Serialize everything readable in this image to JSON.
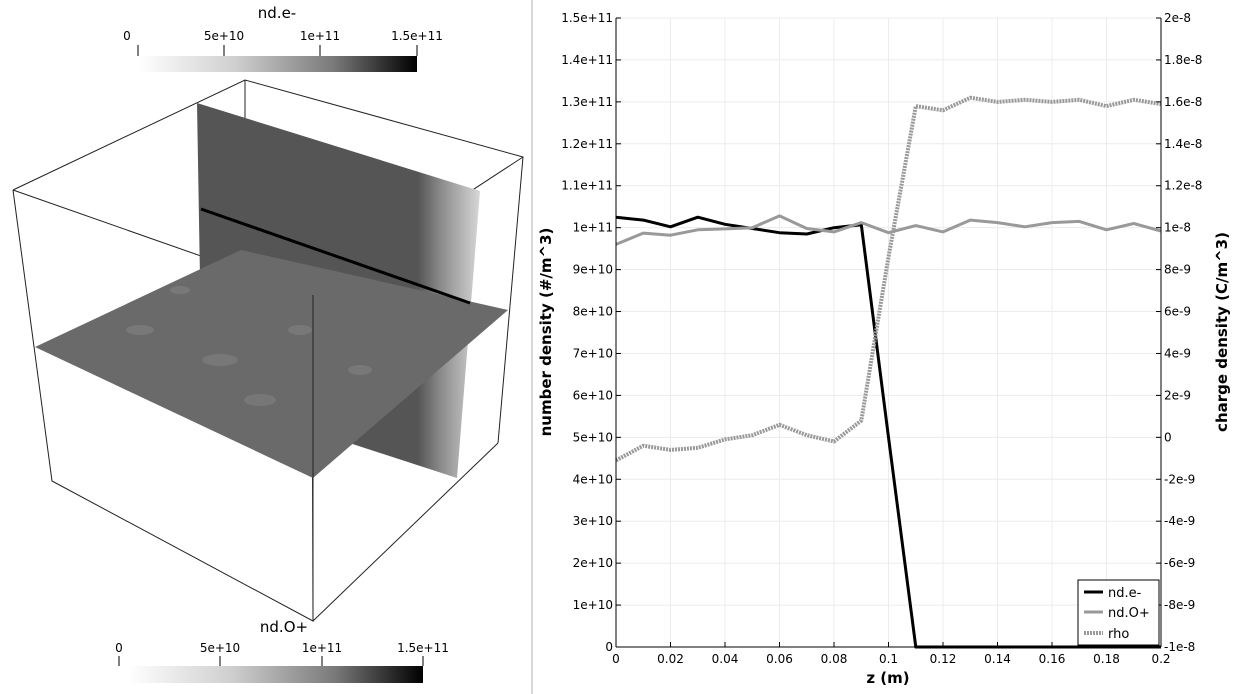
{
  "left_view": {
    "top_colorbar": {
      "title": "nd.e-",
      "tick_labels": [
        "0",
        "5e+10",
        "1e+11",
        "1.5e+11"
      ]
    },
    "bottom_colorbar": {
      "title": "nd.O+",
      "tick_labels": [
        "0",
        "5e+10",
        "1e+11",
        "1.5e+11"
      ]
    }
  },
  "chart_data": {
    "type": "line",
    "xlabel": "z (m)",
    "ylabel": "number density (#/m^3)",
    "y2label": "charge density (C/m^3)",
    "xlim": [
      0,
      0.2
    ],
    "ylim": [
      0,
      150000000000
    ],
    "y2lim": [
      -1e-08,
      2e-08
    ],
    "x_tick_labels": [
      "0",
      "0.02",
      "0.04",
      "0.06",
      "0.08",
      "0.1",
      "0.12",
      "0.14",
      "0.16",
      "0.18",
      "0.2"
    ],
    "y_tick_labels": [
      "0",
      "1e+10",
      "2e+10",
      "3e+10",
      "4e+10",
      "5e+10",
      "6e+10",
      "7e+10",
      "8e+10",
      "9e+10",
      "1e+11",
      "1.1e+11",
      "1.2e+11",
      "1.3e+11",
      "1.4e+11",
      "1.5e+11"
    ],
    "y2_tick_labels": [
      "-1e-8",
      "-8e-9",
      "-6e-9",
      "-4e-9",
      "-2e-9",
      "0",
      "2e-9",
      "4e-9",
      "6e-9",
      "8e-9",
      "1e-8",
      "1.2e-8",
      "1.4e-8",
      "1.6e-8",
      "1.8e-8",
      "2e-8"
    ],
    "grid": true,
    "legend": "bottom-right",
    "series": [
      {
        "name": "nd.e-",
        "axis": "left",
        "color": "#000000",
        "style": "solid",
        "x": [
          0,
          0.01,
          0.02,
          0.03,
          0.04,
          0.05,
          0.06,
          0.07,
          0.08,
          0.09,
          0.1,
          0.11,
          0.12,
          0.13,
          0.14,
          0.15,
          0.16,
          0.17,
          0.18,
          0.19,
          0.2
        ],
        "values": [
          102500000000,
          101800000000,
          100200000000,
          102500000000,
          100800000000,
          99800000000,
          98800000000,
          98500000000,
          100000000000,
          100700000000,
          50000000000,
          0,
          0,
          0,
          0,
          0,
          0,
          0,
          0,
          0,
          0
        ]
      },
      {
        "name": "nd.O+",
        "axis": "left",
        "color": "#999999",
        "style": "solid",
        "x": [
          0,
          0.01,
          0.02,
          0.03,
          0.04,
          0.05,
          0.06,
          0.07,
          0.08,
          0.09,
          0.1,
          0.11,
          0.12,
          0.13,
          0.14,
          0.15,
          0.16,
          0.17,
          0.18,
          0.19,
          0.2
        ],
        "values": [
          96000000000,
          98700000000,
          98200000000,
          99500000000,
          99700000000,
          100000000000,
          102800000000,
          99800000000,
          99000000000,
          101200000000,
          98800000000,
          100500000000,
          99000000000,
          101800000000,
          101200000000,
          100200000000,
          101200000000,
          101500000000,
          99500000000,
          101000000000,
          99200000000
        ]
      },
      {
        "name": "rho",
        "axis": "right",
        "color": "#999999",
        "style": "dotted",
        "x": [
          0,
          0.01,
          0.02,
          0.03,
          0.04,
          0.05,
          0.06,
          0.07,
          0.08,
          0.09,
          0.1,
          0.11,
          0.12,
          0.13,
          0.14,
          0.15,
          0.16,
          0.17,
          0.18,
          0.19,
          0.2
        ],
        "values": [
          -1.1e-09,
          -4e-10,
          -6e-10,
          -5e-10,
          -1e-10,
          1e-10,
          6e-10,
          1e-10,
          -2e-10,
          8e-10,
          8.6e-09,
          1.58e-08,
          1.56e-08,
          1.62e-08,
          1.6e-08,
          1.61e-08,
          1.6e-08,
          1.61e-08,
          1.58e-08,
          1.61e-08,
          1.59e-08
        ]
      }
    ]
  }
}
